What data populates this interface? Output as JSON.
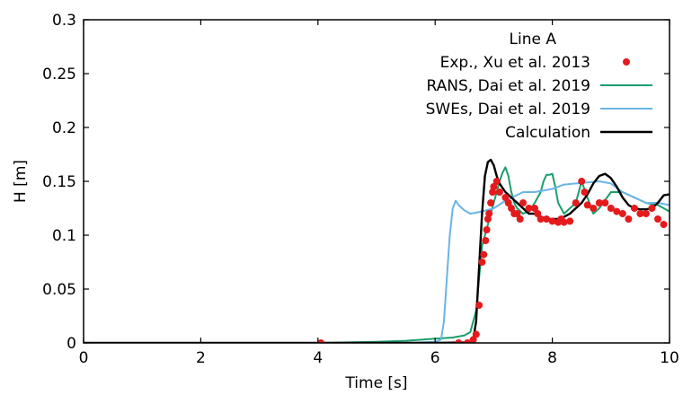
{
  "chart_data": {
    "type": "line",
    "title": "",
    "xlabel": "Time [s]",
    "ylabel": "H [m]",
    "xlim": [
      0,
      10
    ],
    "ylim": [
      0,
      0.3
    ],
    "xticks": [
      "0",
      "2",
      "4",
      "6",
      "8",
      "10"
    ],
    "yticks": [
      "0",
      "0.05",
      "0.1",
      "0.15",
      "0.2",
      "0.25",
      "0.3"
    ],
    "grid": false,
    "legend_title": "Line A",
    "legend_position": "top-right",
    "series": [
      {
        "name": "Exp., Xu et al. 2013",
        "kind": "markers",
        "color": "#e41a1c",
        "x": [
          4.05,
          6.4,
          6.55,
          6.65,
          6.7,
          6.75,
          6.8,
          6.83,
          6.86,
          6.88,
          6.9,
          6.92,
          6.95,
          6.98,
          7.0,
          7.05,
          7.1,
          7.2,
          7.25,
          7.3,
          7.35,
          7.4,
          7.45,
          7.5,
          7.6,
          7.7,
          7.75,
          7.8,
          7.9,
          8.0,
          8.1,
          8.15,
          8.2,
          8.3,
          8.4,
          8.5,
          8.55,
          8.6,
          8.7,
          8.8,
          8.9,
          9.0,
          9.1,
          9.2,
          9.3,
          9.4,
          9.5,
          9.6,
          9.7,
          9.8,
          9.9
        ],
        "y": [
          0.0,
          0.0,
          0.0,
          0.003,
          0.008,
          0.035,
          0.075,
          0.082,
          0.095,
          0.105,
          0.115,
          0.12,
          0.13,
          0.14,
          0.145,
          0.15,
          0.14,
          0.135,
          0.13,
          0.125,
          0.12,
          0.12,
          0.115,
          0.13,
          0.125,
          0.125,
          0.12,
          0.115,
          0.115,
          0.113,
          0.112,
          0.115,
          0.112,
          0.113,
          0.13,
          0.15,
          0.14,
          0.128,
          0.125,
          0.13,
          0.13,
          0.125,
          0.122,
          0.12,
          0.115,
          0.125,
          0.12,
          0.12,
          0.125,
          0.115,
          0.11
        ]
      },
      {
        "name": "RANS, Dai et al. 2019",
        "kind": "line",
        "color": "#1a9e6c",
        "x": [
          0,
          4.0,
          4.5,
          5.0,
          5.5,
          6.0,
          6.3,
          6.5,
          6.6,
          6.7,
          6.75,
          6.8,
          6.9,
          6.95,
          7.0,
          7.05,
          7.1,
          7.15,
          7.2,
          7.25,
          7.3,
          7.35,
          7.4,
          7.5,
          7.6,
          7.7,
          7.8,
          7.85,
          7.9,
          7.95,
          8.0,
          8.05,
          8.1,
          8.2,
          8.3,
          8.4,
          8.5,
          8.6,
          8.7,
          8.8,
          9.0,
          9.2,
          9.4,
          9.6,
          9.8,
          10.0
        ],
        "y": [
          0,
          0,
          0.0005,
          0.001,
          0.002,
          0.004,
          0.005,
          0.007,
          0.01,
          0.03,
          0.06,
          0.09,
          0.11,
          0.12,
          0.13,
          0.14,
          0.15,
          0.158,
          0.163,
          0.155,
          0.14,
          0.13,
          0.125,
          0.12,
          0.122,
          0.13,
          0.14,
          0.15,
          0.156,
          0.156,
          0.157,
          0.145,
          0.13,
          0.12,
          0.125,
          0.13,
          0.15,
          0.135,
          0.12,
          0.125,
          0.14,
          0.14,
          0.135,
          0.13,
          0.128,
          0.122
        ]
      },
      {
        "name": "SWEs, Dai et al. 2019",
        "kind": "line",
        "color": "#6ab4e6",
        "x": [
          0,
          5.0,
          5.5,
          6.0,
          6.1,
          6.15,
          6.2,
          6.25,
          6.3,
          6.35,
          6.4,
          6.5,
          6.6,
          6.8,
          7.0,
          7.2,
          7.5,
          7.7,
          7.9,
          8.0,
          8.2,
          8.4,
          8.6,
          8.8,
          9.0,
          9.2,
          9.4,
          9.6,
          9.8,
          10.0
        ],
        "y": [
          0,
          0,
          0,
          0.001,
          0.003,
          0.02,
          0.06,
          0.1,
          0.125,
          0.132,
          0.128,
          0.123,
          0.12,
          0.122,
          0.125,
          0.132,
          0.14,
          0.14,
          0.142,
          0.143,
          0.147,
          0.148,
          0.149,
          0.15,
          0.148,
          0.14,
          0.135,
          0.13,
          0.13,
          0.128
        ]
      },
      {
        "name": "Calculation",
        "kind": "line",
        "color": "#000000",
        "x": [
          0,
          6.0,
          6.5,
          6.6,
          6.65,
          6.7,
          6.75,
          6.8,
          6.85,
          6.9,
          6.95,
          7.0,
          7.05,
          7.1,
          7.2,
          7.3,
          7.4,
          7.5,
          7.6,
          7.7,
          7.8,
          7.9,
          8.0,
          8.1,
          8.2,
          8.3,
          8.4,
          8.5,
          8.6,
          8.7,
          8.8,
          8.9,
          9.0,
          9.1,
          9.2,
          9.3,
          9.4,
          9.5,
          9.6,
          9.7,
          9.8,
          9.9,
          10.0
        ],
        "y": [
          0,
          0,
          0.0005,
          0.001,
          0.003,
          0.02,
          0.07,
          0.12,
          0.155,
          0.168,
          0.17,
          0.165,
          0.155,
          0.148,
          0.14,
          0.135,
          0.13,
          0.125,
          0.12,
          0.12,
          0.117,
          0.115,
          0.115,
          0.115,
          0.117,
          0.12,
          0.125,
          0.13,
          0.138,
          0.148,
          0.155,
          0.157,
          0.153,
          0.145,
          0.135,
          0.128,
          0.125,
          0.124,
          0.124,
          0.125,
          0.13,
          0.137,
          0.138
        ]
      }
    ]
  }
}
